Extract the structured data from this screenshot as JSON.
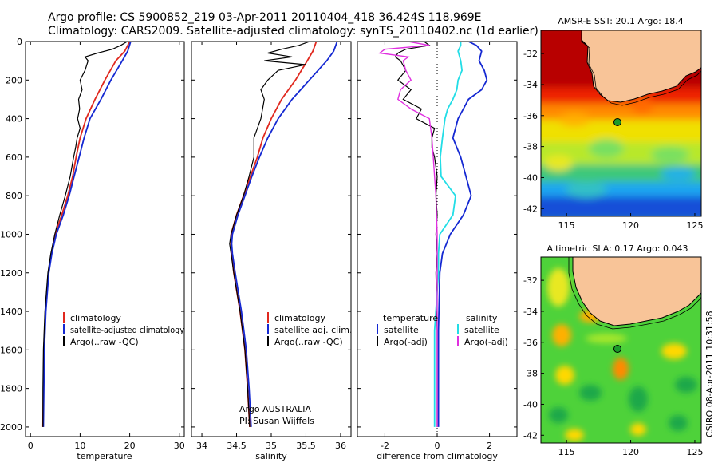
{
  "header": {
    "line1": "Argo profile: CS 5900852_219 03-Apr-2011 20110404_418 36.424S 118.969E",
    "line2": "Climatology: CARS2009. Satellite-adjusted climatology: synTS_20110402.nc (1d earlier)"
  },
  "colors": {
    "climatology": "#e0281e",
    "satellite": "#1428d2",
    "argo": "#000000",
    "sat_cyan": "#22dde6",
    "argo_magenta": "#e030e0",
    "land": "#f8c498"
  },
  "chart_data": [
    {
      "id": "temperature",
      "type": "line",
      "xlabel": "temperature",
      "ylabel": "",
      "xlim": [
        -1,
        31
      ],
      "ylim": [
        2050,
        0
      ],
      "xticks": [
        "0",
        "10",
        "20",
        "30"
      ],
      "yticks": [
        "0",
        "200",
        "400",
        "600",
        "800",
        "1000",
        "1200",
        "1400",
        "1600",
        "1800",
        "2000"
      ],
      "legend": [
        "climatology",
        "satellite-adjusted climatology",
        "Argo(..raw -QC)"
      ],
      "series": [
        {
          "name": "climatology",
          "depth": [
            0,
            50,
            100,
            200,
            300,
            400,
            500,
            600,
            700,
            800,
            900,
            1000,
            1100,
            1200,
            1400,
            1600,
            1800,
            2000
          ],
          "values": [
            20.0,
            19.0,
            17.2,
            15.0,
            13.0,
            11.2,
            10.0,
            9.2,
            8.5,
            7.5,
            6.3,
            5.0,
            4.2,
            3.6,
            3.0,
            2.7,
            2.6,
            2.5
          ]
        },
        {
          "name": "satellite-adjusted climatology",
          "depth": [
            0,
            50,
            100,
            200,
            300,
            400,
            500,
            600,
            700,
            800,
            900,
            1000,
            1100,
            1200,
            1400,
            1600,
            1800,
            2000
          ],
          "values": [
            20.2,
            19.6,
            18.5,
            16.2,
            14.2,
            12.0,
            10.8,
            9.8,
            8.8,
            7.8,
            6.6,
            5.2,
            4.3,
            3.7,
            3.1,
            2.8,
            2.7,
            2.6
          ]
        },
        {
          "name": "Argo(..raw -QC)",
          "depth": [
            0,
            20,
            40,
            60,
            80,
            100,
            150,
            200,
            250,
            300,
            350,
            400,
            450,
            500,
            550,
            600,
            700,
            800,
            900,
            1000,
            1100,
            1200,
            1400,
            1600,
            1800,
            2000
          ],
          "values": [
            19.5,
            18.2,
            16.5,
            13.5,
            11.0,
            11.6,
            11.0,
            10.0,
            10.4,
            9.7,
            9.9,
            9.5,
            10.0,
            9.4,
            9.1,
            8.7,
            8.0,
            7.0,
            5.9,
            4.9,
            4.1,
            3.5,
            2.9,
            2.6,
            2.5,
            2.5
          ]
        }
      ]
    },
    {
      "id": "salinity",
      "type": "line",
      "xlabel": "salinity",
      "ylabel": "",
      "xlim": [
        33.85,
        36.15
      ],
      "ylim": [
        2050,
        0
      ],
      "xticks": [
        "34",
        "34.5",
        "35",
        "35.5",
        "36"
      ],
      "legend": [
        "climatology",
        "satellite adj. clim.",
        "Argo(..raw -QC)"
      ],
      "annotation": [
        "Argo AUSTRALIA",
        "PI: Susan Wijffels"
      ],
      "series": [
        {
          "name": "climatology",
          "depth": [
            0,
            50,
            100,
            200,
            300,
            400,
            500,
            600,
            700,
            800,
            900,
            1000,
            1050,
            1100,
            1200,
            1400,
            1600,
            1800,
            2000
          ],
          "values": [
            35.65,
            35.6,
            35.52,
            35.35,
            35.15,
            35.0,
            34.88,
            34.8,
            34.7,
            34.6,
            34.5,
            34.42,
            34.42,
            34.43,
            34.46,
            34.55,
            34.62,
            34.66,
            34.69
          ]
        },
        {
          "name": "satellite adj. clim.",
          "depth": [
            0,
            50,
            100,
            200,
            300,
            400,
            500,
            600,
            700,
            800,
            900,
            1000,
            1050,
            1100,
            1200,
            1400,
            1600,
            1800,
            2000
          ],
          "values": [
            35.95,
            35.9,
            35.8,
            35.55,
            35.3,
            35.1,
            34.95,
            34.83,
            34.72,
            34.62,
            34.52,
            34.44,
            34.43,
            34.44,
            34.48,
            34.57,
            34.64,
            34.68,
            34.71
          ]
        },
        {
          "name": "Argo(..raw -QC)",
          "depth": [
            0,
            20,
            40,
            60,
            80,
            100,
            120,
            150,
            200,
            250,
            300,
            400,
            500,
            600,
            700,
            800,
            900,
            1000,
            1050,
            1100,
            1200,
            1400,
            1600,
            1800,
            2000
          ],
          "values": [
            35.55,
            35.4,
            35.15,
            34.95,
            35.3,
            34.9,
            35.5,
            35.1,
            34.95,
            34.85,
            34.9,
            34.85,
            34.75,
            34.75,
            34.68,
            34.6,
            34.5,
            34.42,
            34.4,
            34.42,
            34.46,
            34.55,
            34.62,
            34.66,
            34.69
          ]
        }
      ]
    },
    {
      "id": "difference",
      "type": "line",
      "xlabel": "difference from climatology",
      "ylabel": "",
      "xlim": [
        -3.05,
        3.05
      ],
      "ylim": [
        2050,
        0
      ],
      "xticks": [
        "-2",
        "0",
        "2"
      ],
      "legend_temp_title": "temperature",
      "legend_sal_title": "salinity",
      "legend": [
        "satellite",
        "Argo(-adj)",
        "satellite",
        "Argo(-adj)"
      ],
      "series": [
        {
          "name": "temperature satellite",
          "depth": [
            0,
            20,
            50,
            100,
            150,
            200,
            250,
            300,
            350,
            400,
            500,
            600,
            700,
            800,
            900,
            1000,
            1100,
            1200,
            1500,
            2000
          ],
          "values": [
            1.2,
            1.5,
            1.7,
            1.6,
            1.8,
            1.9,
            1.7,
            1.2,
            1.0,
            0.8,
            0.6,
            0.9,
            1.1,
            1.3,
            1.0,
            0.5,
            0.2,
            0.1,
            0.05,
            0.05
          ]
        },
        {
          "name": "temperature Argo(-adj)",
          "depth": [
            0,
            20,
            40,
            60,
            80,
            100,
            150,
            200,
            250,
            300,
            350,
            400,
            450,
            500,
            550,
            600,
            700,
            800,
            900,
            1000,
            1100,
            1200,
            1500,
            2000
          ],
          "values": [
            -0.5,
            -0.3,
            -1.2,
            -1.5,
            -1.6,
            -1.4,
            -1.2,
            -1.5,
            -1.0,
            -1.3,
            -0.6,
            -0.8,
            -0.1,
            -0.2,
            -0.2,
            -0.1,
            0.0,
            -0.05,
            0.0,
            -0.05,
            0.0,
            -0.05,
            0.0,
            0.0
          ]
        },
        {
          "name": "salinity satellite",
          "depth": [
            0,
            20,
            50,
            100,
            150,
            200,
            250,
            300,
            350,
            400,
            500,
            600,
            700,
            800,
            900,
            1000,
            1100,
            1200,
            1500,
            2000
          ],
          "values": [
            0.9,
            0.9,
            0.8,
            0.9,
            0.95,
            0.8,
            0.75,
            0.6,
            0.4,
            0.3,
            0.2,
            0.12,
            0.15,
            0.7,
            0.6,
            0.1,
            0.05,
            0.05,
            -0.1,
            -0.1
          ]
        },
        {
          "name": "salinity Argo(-adj)",
          "depth": [
            0,
            20,
            40,
            60,
            80,
            100,
            150,
            200,
            250,
            300,
            350,
            400,
            500,
            600,
            700,
            800,
            1000,
            1200,
            1500,
            2000
          ],
          "values": [
            -1.1,
            -0.3,
            -2.0,
            -2.2,
            -1.1,
            -1.3,
            -1.2,
            -1.0,
            -1.4,
            -1.5,
            -1.0,
            -0.3,
            -0.2,
            -0.15,
            -0.1,
            -0.05,
            0.0,
            0.0,
            0.0,
            0.0
          ]
        }
      ]
    },
    {
      "id": "sst_map",
      "type": "heatmap",
      "title": "AMSR-E SST: 20.1  Argo: 18.4",
      "xticks": [
        "115",
        "120",
        "125"
      ],
      "yticks": [
        "-32",
        "-34",
        "-36",
        "-38",
        "-40",
        "-42"
      ],
      "lon_range": [
        113,
        125.5
      ],
      "lat_range": [
        -42.5,
        -30.5
      ],
      "profile_location": {
        "lon": 118.969,
        "lat": -36.424
      }
    },
    {
      "id": "sla_map",
      "type": "heatmap",
      "title": "Altimetric SLA: 0.17  Argo: 0.043",
      "xticks": [
        "115",
        "120",
        "125"
      ],
      "yticks": [
        "-32",
        "-34",
        "-36",
        "-38",
        "-40",
        "-42"
      ],
      "lon_range": [
        113,
        125.5
      ],
      "lat_range": [
        -42.5,
        -30.5
      ],
      "profile_location": {
        "lon": 118.969,
        "lat": -36.424
      }
    }
  ],
  "footer_stamp": "CSIRO 08-Apr-2011 10:31:58"
}
